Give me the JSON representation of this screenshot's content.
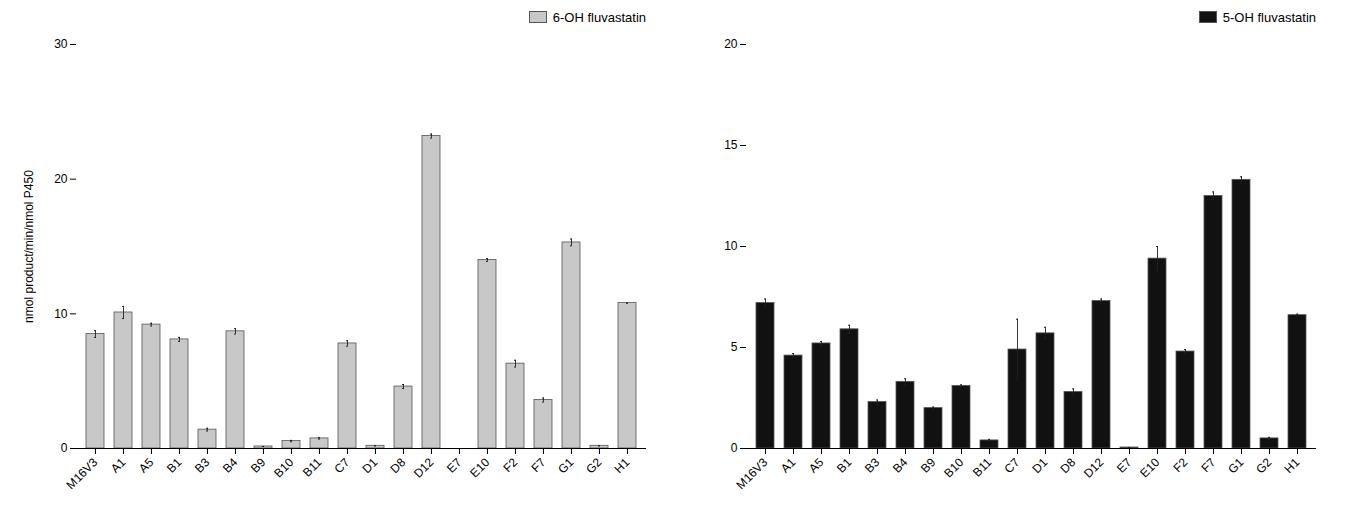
{
  "chart_data": [
    {
      "type": "bar",
      "ylabel": "nmol product/min/nmol P450",
      "categories": [
        "M16V3",
        "A1",
        "A5",
        "B1",
        "B3",
        "B4",
        "B9",
        "B10",
        "B11",
        "C7",
        "D1",
        "D8",
        "D12",
        "E7",
        "E10",
        "F2",
        "F7",
        "G1",
        "G2",
        "H1"
      ],
      "series": [
        {
          "name": "6-OH fluvastatin",
          "color": "#c8c8c8",
          "values": [
            8.5,
            10.1,
            9.2,
            8.1,
            1.4,
            8.7,
            0.15,
            0.55,
            0.75,
            7.8,
            0.2,
            4.6,
            23.2,
            0.0,
            14.0,
            6.3,
            3.6,
            15.3,
            0.2,
            10.8
          ],
          "errors": [
            0.25,
            0.45,
            0.1,
            0.15,
            0.1,
            0.2,
            0.0,
            0.05,
            0.05,
            0.2,
            0.0,
            0.15,
            0.15,
            0.0,
            0.1,
            0.25,
            0.15,
            0.25,
            0.0,
            0.0
          ]
        }
      ],
      "ylim": [
        0,
        30
      ],
      "yticks": [
        0,
        10,
        20,
        30
      ],
      "grid": false,
      "legend": "upper right"
    },
    {
      "type": "bar",
      "categories": [
        "M16V3",
        "A1",
        "A5",
        "B1",
        "B3",
        "B4",
        "B9",
        "B10",
        "B11",
        "C7",
        "D1",
        "D8",
        "D12",
        "E7",
        "E10",
        "F2",
        "F7",
        "G1",
        "G2",
        "H1"
      ],
      "series": [
        {
          "name": "5-OH fluvastatin",
          "color": "#111111",
          "values": [
            7.2,
            4.6,
            5.2,
            5.9,
            2.3,
            3.3,
            2.0,
            3.1,
            0.4,
            4.9,
            5.7,
            2.8,
            7.3,
            0.05,
            9.4,
            4.8,
            12.5,
            13.3,
            0.5,
            6.6
          ],
          "errors": [
            0.2,
            0.1,
            0.1,
            0.2,
            0.1,
            0.15,
            0.05,
            0.05,
            0.05,
            1.5,
            0.3,
            0.15,
            0.1,
            0.0,
            0.6,
            0.1,
            0.2,
            0.15,
            0.05,
            0.05
          ]
        }
      ],
      "ylim": [
        0,
        20
      ],
      "yticks": [
        0,
        5,
        10,
        15,
        20
      ],
      "grid": false,
      "legend": "upper right"
    }
  ]
}
